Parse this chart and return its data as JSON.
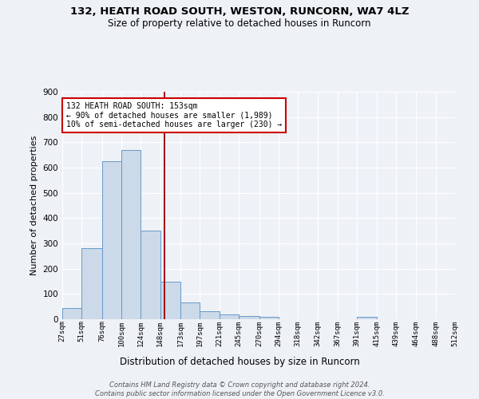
{
  "title": "132, HEATH ROAD SOUTH, WESTON, RUNCORN, WA7 4LZ",
  "subtitle": "Size of property relative to detached houses in Runcorn",
  "xlabel": "Distribution of detached houses by size in Runcorn",
  "ylabel": "Number of detached properties",
  "bar_color": "#ccd9e8",
  "bar_edge_color": "#6699cc",
  "background_color": "#eef2f7",
  "grid_color": "#ffffff",
  "vline_x": 153,
  "vline_color": "#990000",
  "annotation_text": "132 HEATH ROAD SOUTH: 153sqm\n← 90% of detached houses are smaller (1,989)\n10% of semi-detached houses are larger (230) →",
  "annotation_box_color": "#ffffff",
  "annotation_box_edge": "#cc0000",
  "footnote": "Contains HM Land Registry data © Crown copyright and database right 2024.\nContains public sector information licensed under the Open Government Licence v3.0.",
  "bin_edges": [
    27,
    51,
    76,
    100,
    124,
    148,
    173,
    197,
    221,
    245,
    270,
    294,
    318,
    342,
    367,
    391,
    415,
    439,
    464,
    488,
    512
  ],
  "bin_labels": [
    "27sqm",
    "51sqm",
    "76sqm",
    "100sqm",
    "124sqm",
    "148sqm",
    "173sqm",
    "197sqm",
    "221sqm",
    "245sqm",
    "270sqm",
    "294sqm",
    "318sqm",
    "342sqm",
    "367sqm",
    "391sqm",
    "415sqm",
    "439sqm",
    "464sqm",
    "488sqm",
    "512sqm"
  ],
  "counts": [
    45,
    280,
    625,
    670,
    350,
    150,
    65,
    32,
    20,
    12,
    8,
    0,
    0,
    0,
    0,
    8,
    0,
    0,
    0,
    0
  ],
  "ylim": [
    0,
    900
  ],
  "yticks": [
    0,
    100,
    200,
    300,
    400,
    500,
    600,
    700,
    800,
    900
  ]
}
